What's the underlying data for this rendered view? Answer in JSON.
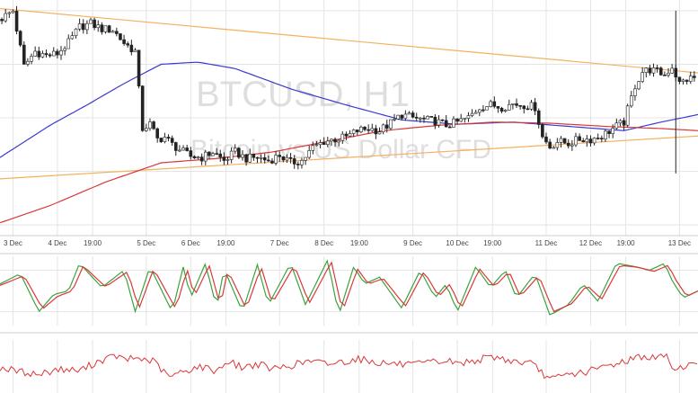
{
  "watermark": {
    "symbol": "BTCUSD, H1",
    "description": "Bitcoin vs US Dollar CFD"
  },
  "colors": {
    "candle_up": "#ffffff",
    "candle_down": "#222222",
    "candle_outline": "#222222",
    "trendline": "#f4b15f",
    "ma_fast": "#d9383a",
    "ma_slow": "#3a3ad0",
    "stoch_k": "#3da13d",
    "stoch_d": "#d9383a",
    "rsi": "#d9383a",
    "grid": "#e4e4e4",
    "divider": "#cccccc"
  },
  "chart_data": [
    {
      "type": "candlestick",
      "title": "BTCUSD, H1",
      "subtitle": "Bitcoin vs US Dollar CFD",
      "grid": true,
      "x_tick_labels": [
        "3 Dec",
        "4 Dec",
        "19:00",
        "5 Dec",
        "6 Dec",
        "19:00",
        "7 Dec",
        "8 Dec",
        "19:00",
        "9 Dec",
        "10 Dec",
        "19:00",
        "11 Dec",
        "12 Dec",
        "19:00",
        "13 Dec"
      ],
      "x_tick_hours": [
        0,
        24,
        43,
        72,
        96,
        115,
        144,
        168,
        187,
        216,
        240,
        259,
        288,
        312,
        331,
        360
      ],
      "x_range_hours": [
        -7,
        370
      ],
      "y_range": [
        90,
        310
      ],
      "candle_anchor_hours": [
        -7,
        0,
        6,
        12,
        18,
        24,
        30,
        36,
        42,
        48,
        54,
        60,
        66,
        70,
        74,
        78,
        82,
        86,
        92,
        96,
        102,
        108,
        114,
        120,
        126,
        132,
        138,
        144,
        150,
        156,
        162,
        168,
        174,
        180,
        186,
        192,
        198,
        204,
        210,
        216,
        222,
        228,
        234,
        240,
        246,
        252,
        258,
        264,
        270,
        276,
        282,
        286,
        290,
        294,
        300,
        306,
        312,
        318,
        324,
        330,
        336,
        340,
        344,
        348,
        352,
        356,
        360,
        364,
        370
      ],
      "candle_anchor_close": [
        292,
        300,
        248,
        262,
        258,
        260,
        270,
        285,
        288,
        283,
        282,
        270,
        262,
        190,
        194,
        180,
        182,
        175,
        168,
        164,
        163,
        168,
        160,
        168,
        162,
        163,
        160,
        165,
        158,
        160,
        172,
        178,
        180,
        182,
        188,
        190,
        188,
        195,
        203,
        200,
        198,
        197,
        193,
        196,
        200,
        210,
        212,
        210,
        213,
        212,
        210,
        182,
        173,
        178,
        176,
        180,
        180,
        183,
        190,
        196,
        230,
        243,
        245,
        243,
        240,
        248,
        232,
        236,
        238
      ],
      "ma_slow": {
        "hours": [
          -7,
          20,
          40,
          60,
          80,
          100,
          120,
          150,
          180,
          210,
          240,
          270,
          300,
          330,
          350,
          370
        ],
        "values": [
          163,
          193,
          212,
          232,
          250,
          252,
          246,
          227,
          212,
          198,
          194,
          196,
          192,
          188,
          196,
          203
        ]
      },
      "ma_fast": {
        "hours": [
          -7,
          20,
          50,
          80,
          110,
          140,
          170,
          200,
          230,
          260,
          290,
          320,
          350,
          370
        ],
        "values": [
          102,
          118,
          140,
          158,
          162,
          168,
          178,
          188,
          193,
          196,
          195,
          192,
          190,
          188
        ]
      },
      "trendline_upper": {
        "hours": [
          -7,
          370
        ],
        "values": [
          302,
          242
        ]
      },
      "trendline_lower": {
        "hours": [
          -7,
          370
        ],
        "values": [
          143,
          183
        ]
      }
    },
    {
      "type": "line",
      "title": "",
      "subtitle": "",
      "ylim": [
        0,
        100
      ],
      "reference_levels": [
        20,
        80
      ],
      "x_range_hours": [
        -7,
        370
      ],
      "series": [
        {
          "key": "stoch_k",
          "hours": [
            -7,
            4,
            14,
            22,
            30,
            36,
            48,
            60,
            66,
            74,
            86,
            92,
            96,
            104,
            110,
            114,
            124,
            132,
            138,
            150,
            158,
            170,
            176,
            184,
            190,
            198,
            210,
            220,
            228,
            234,
            240,
            250,
            258,
            266,
            272,
            282,
            290,
            300,
            308,
            316,
            326,
            336,
            344,
            352,
            356,
            362,
            370
          ],
          "values": [
            60,
            75,
            20,
            45,
            50,
            90,
            55,
            80,
            20,
            85,
            20,
            85,
            40,
            90,
            25,
            82,
            20,
            88,
            30,
            90,
            30,
            95,
            15,
            85,
            60,
            70,
            25,
            80,
            40,
            60,
            20,
            85,
            55,
            80,
            40,
            75,
            15,
            30,
            60,
            35,
            90,
            85,
            80,
            90,
            65,
            40,
            50
          ]
        },
        {
          "key": "stoch_d",
          "hours": [
            -7,
            6,
            16,
            24,
            32,
            38,
            50,
            62,
            68,
            76,
            88,
            94,
            98,
            106,
            112,
            116,
            126,
            134,
            140,
            152,
            160,
            172,
            178,
            186,
            192,
            200,
            212,
            222,
            230,
            236,
            242,
            252,
            260,
            268,
            274,
            284,
            292,
            302,
            310,
            318,
            328,
            338,
            346,
            354,
            358,
            364,
            370
          ],
          "values": [
            58,
            72,
            24,
            42,
            50,
            86,
            56,
            78,
            24,
            82,
            24,
            82,
            42,
            87,
            28,
            80,
            24,
            85,
            32,
            87,
            32,
            92,
            20,
            82,
            60,
            68,
            28,
            78,
            42,
            60,
            24,
            82,
            56,
            78,
            42,
            72,
            20,
            32,
            58,
            38,
            87,
            84,
            78,
            87,
            66,
            42,
            50
          ]
        }
      ]
    },
    {
      "type": "line",
      "title": "",
      "subtitle": "",
      "ylim": [
        0,
        100
      ],
      "x_range_hours": [
        -7,
        370
      ],
      "series": [
        {
          "key": "rsi",
          "hours": [
            -7,
            4,
            14,
            24,
            36,
            46,
            56,
            60,
            66,
            76,
            84,
            92,
            100,
            110,
            116,
            124,
            132,
            140,
            150,
            160,
            170,
            180,
            186,
            196,
            206,
            216,
            226,
            236,
            240,
            250,
            260,
            270,
            280,
            286,
            290,
            300,
            310,
            320,
            330,
            340,
            346,
            352,
            358,
            364,
            370
          ],
          "values": [
            48,
            40,
            35,
            45,
            42,
            60,
            70,
            62,
            66,
            60,
            30,
            40,
            50,
            42,
            60,
            48,
            55,
            45,
            52,
            60,
            55,
            60,
            65,
            58,
            55,
            52,
            58,
            60,
            55,
            62,
            68,
            60,
            55,
            38,
            25,
            35,
            40,
            50,
            60,
            70,
            65,
            72,
            42,
            55,
            50
          ]
        }
      ]
    }
  ]
}
